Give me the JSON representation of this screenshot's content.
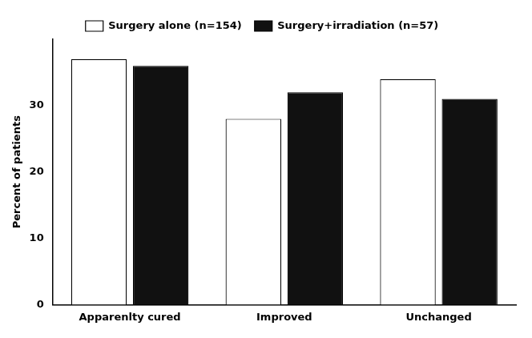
{
  "chart_data": {
    "type": "bar",
    "categories": [
      "Apparenlty cured",
      "Improved",
      "Unchanged"
    ],
    "series": [
      {
        "name": "Surgery alone (n=154)",
        "color": "#ffffff",
        "values": [
          37.0,
          28.0,
          34.0
        ]
      },
      {
        "name": "Surgery+irradiation (n=57)",
        "color": "#111111",
        "values": [
          36.0,
          32.0,
          31.0
        ]
      }
    ],
    "ylabel": "Percent of patients",
    "ylim": [
      0,
      40
    ],
    "yticks": [
      0,
      10,
      20,
      30
    ],
    "grid": false,
    "legend": "top"
  }
}
